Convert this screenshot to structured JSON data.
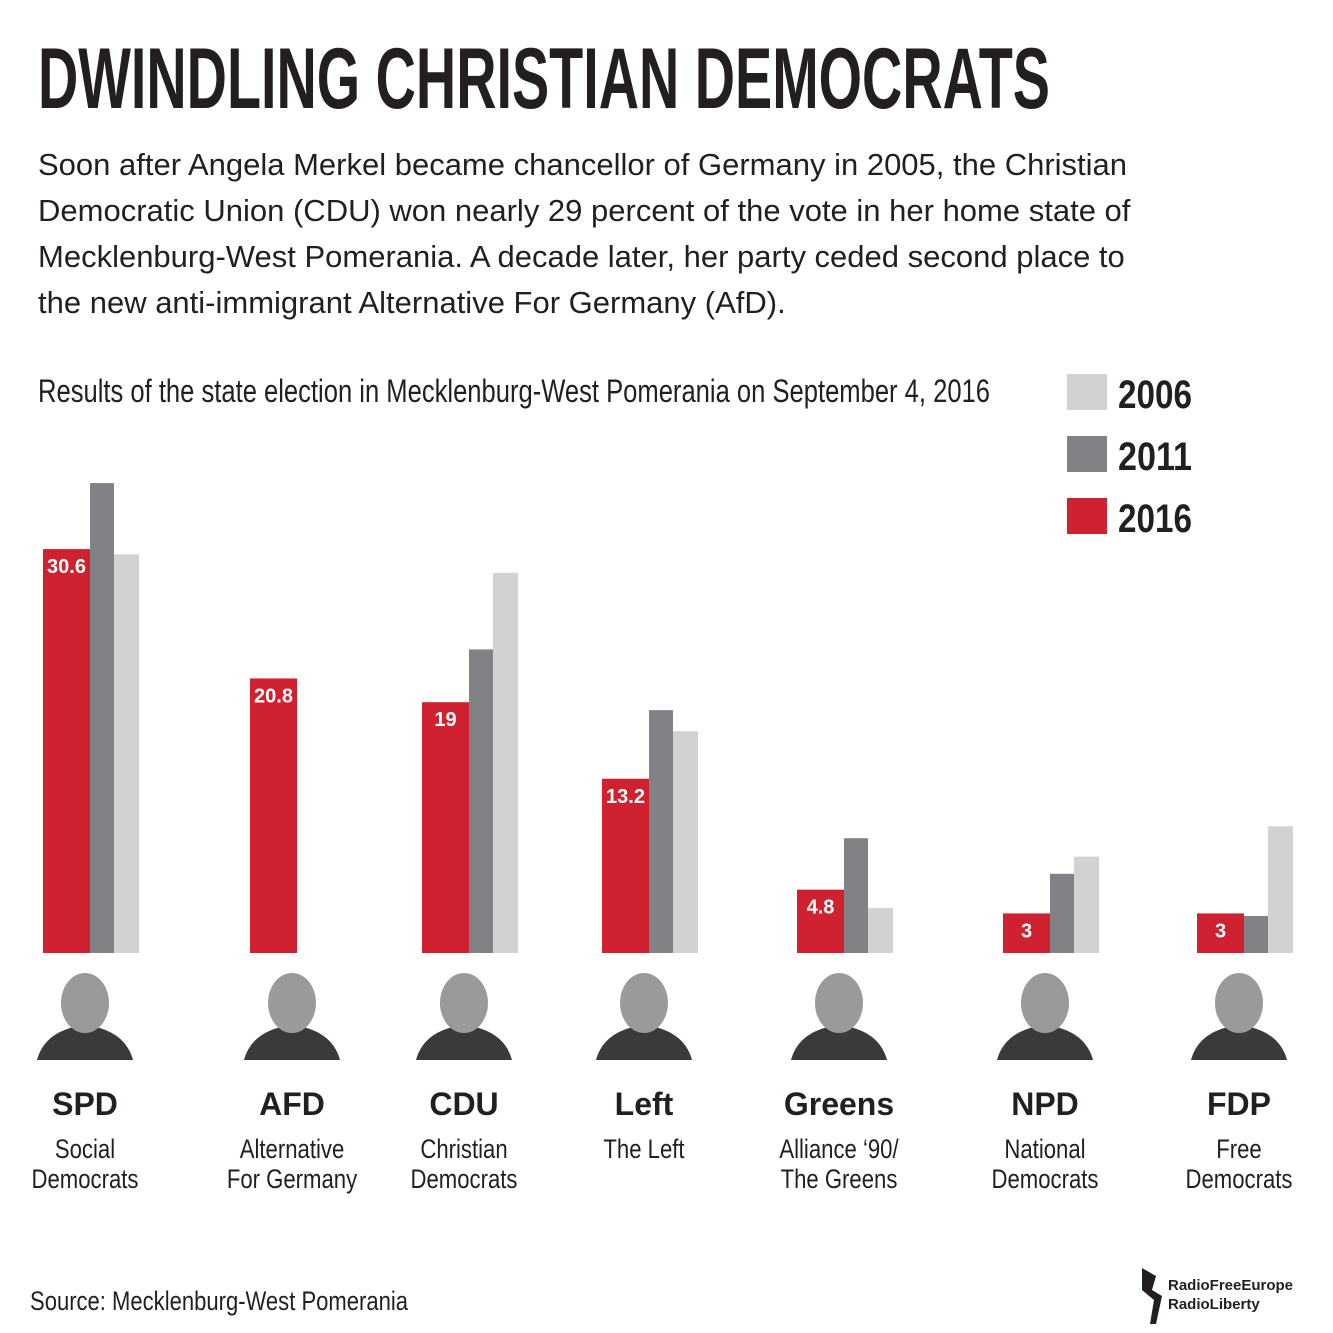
{
  "chart_data": {
    "type": "bar",
    "title": "DWINDLING CHRISTIAN DEMOCRATS",
    "description": [
      "Soon after Angela Merkel became chancellor of Germany in 2005, the Christian",
      "Democratic Union (CDU) won nearly 29 percent of the vote in her home state of",
      "Mecklenburg-West Pomerania. A decade later, her party ceded second place to",
      "the new anti-immigrant Alternative For Germany (AfD)."
    ],
    "subtitle": "Results of the state election in Mecklenburg-West Pomerania on September 4, 2016",
    "categories": [
      "SPD",
      "AFD",
      "CDU",
      "Left",
      "Greens",
      "NPD",
      "FDP"
    ],
    "category_descriptions": [
      [
        "Social",
        "Democrats"
      ],
      [
        "Alternative",
        "For Germany"
      ],
      [
        "Christian",
        "Democrats"
      ],
      [
        "The Left"
      ],
      [
        "Alliance ‘90/",
        "The Greens"
      ],
      [
        "National",
        "Democrats"
      ],
      [
        "Free",
        "Democrats"
      ]
    ],
    "series": [
      {
        "name": "2016",
        "color": "#d02131",
        "values": [
          30.6,
          20.8,
          19,
          13.2,
          4.8,
          3,
          3
        ]
      },
      {
        "name": "2011",
        "color": "#808285",
        "values": [
          35.6,
          null,
          23.0,
          18.4,
          8.7,
          6.0,
          2.8
        ]
      },
      {
        "name": "2006",
        "color": "#d1d2d4",
        "values": [
          30.2,
          null,
          28.8,
          16.8,
          3.4,
          7.3,
          9.6
        ]
      }
    ],
    "legend_order": [
      2,
      1,
      0
    ],
    "source": "Source: Mecklenburg-West Pomerania",
    "logo": [
      "RadioFreeEurope",
      "RadioLiberty"
    ]
  }
}
